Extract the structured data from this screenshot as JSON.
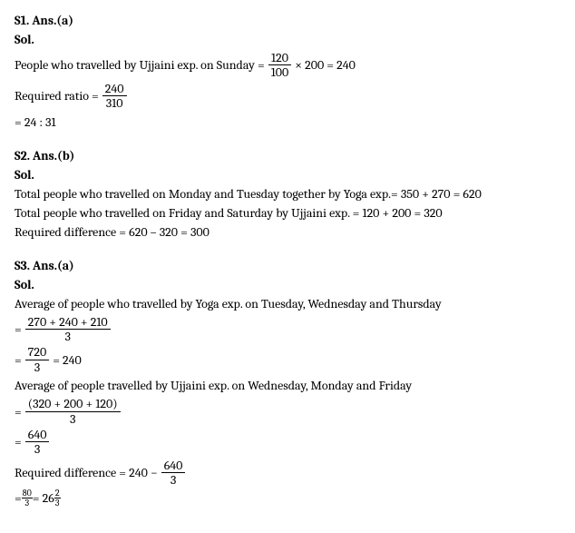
{
  "s1": {
    "heading": "S1. Ans.(a)",
    "sol_label": "Sol.",
    "line1_text": "People who travelled by Ujjaini exp. on Sunday  = ",
    "frac1_num": "120",
    "frac1_den": "100",
    "line1_mid": " × 200 = 240",
    "line2_text": "Required ratio = ",
    "frac2_num": "240",
    "frac2_den": "310",
    "line3_text": "= 24 : 31"
  },
  "s2": {
    "heading": "S2. Ans.(b)",
    "sol_label": "Sol.",
    "line1": "Total people who travelled on Monday and Tuesday together by Yoga exp.= 350 + 270 = 620",
    "line2": "Total people who travelled on Friday and Saturday by Ujjaini exp. = 120 + 200 = 320",
    "line3": "Required difference = 620 – 320 = 300"
  },
  "s3": {
    "heading": "S3. Ans.(a)",
    "sol_label": "Sol.",
    "line1": "Average of people who travelled by Yoga exp. on Tuesday, Wednesday and Thursday",
    "eq_prefix": "= ",
    "frac1_num": "270 + 240 + 210",
    "frac1_den": "3",
    "frac2_num": "720",
    "frac2_den": "3",
    "frac2_result": " = 240",
    "line3": "Average of people travelled by Ujjaini exp. on Wednesday, Monday and Friday",
    "frac3_num": "(320 + 200 + 120)",
    "frac3_den": "3",
    "frac4_num": "640",
    "frac4_den": "3",
    "line5_text": "Required difference = 240 − ",
    "frac5_num": "640",
    "frac5_den": "3",
    "frac6_num": "80",
    "frac6_den": "3",
    "line6_mid": " = 26",
    "frac7_num": "2",
    "frac7_den": "3"
  }
}
